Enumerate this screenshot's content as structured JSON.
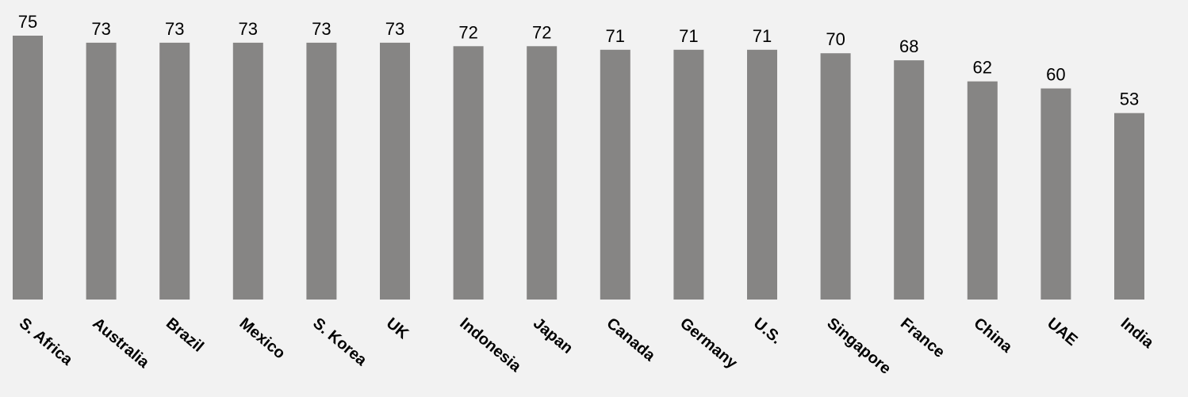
{
  "chart_data": {
    "type": "bar",
    "categories": [
      "S. Africa",
      "Australia",
      "Brazil",
      "Mexico",
      "S. Korea",
      "UK",
      "Indonesia",
      "Japan",
      "Canada",
      "Germany",
      "U.S.",
      "Singapore",
      "France",
      "China",
      "UAE",
      "India"
    ],
    "values": [
      75,
      73,
      73,
      73,
      73,
      73,
      72,
      72,
      71,
      71,
      71,
      70,
      68,
      62,
      60,
      53
    ],
    "title": "",
    "xlabel": "",
    "ylabel": "",
    "ylim": [
      0,
      75
    ],
    "grid": false,
    "legend": "none",
    "data_labels": true,
    "colors": {
      "bar": "#868584",
      "background": "#f2f2f2",
      "text": "#000000"
    }
  }
}
